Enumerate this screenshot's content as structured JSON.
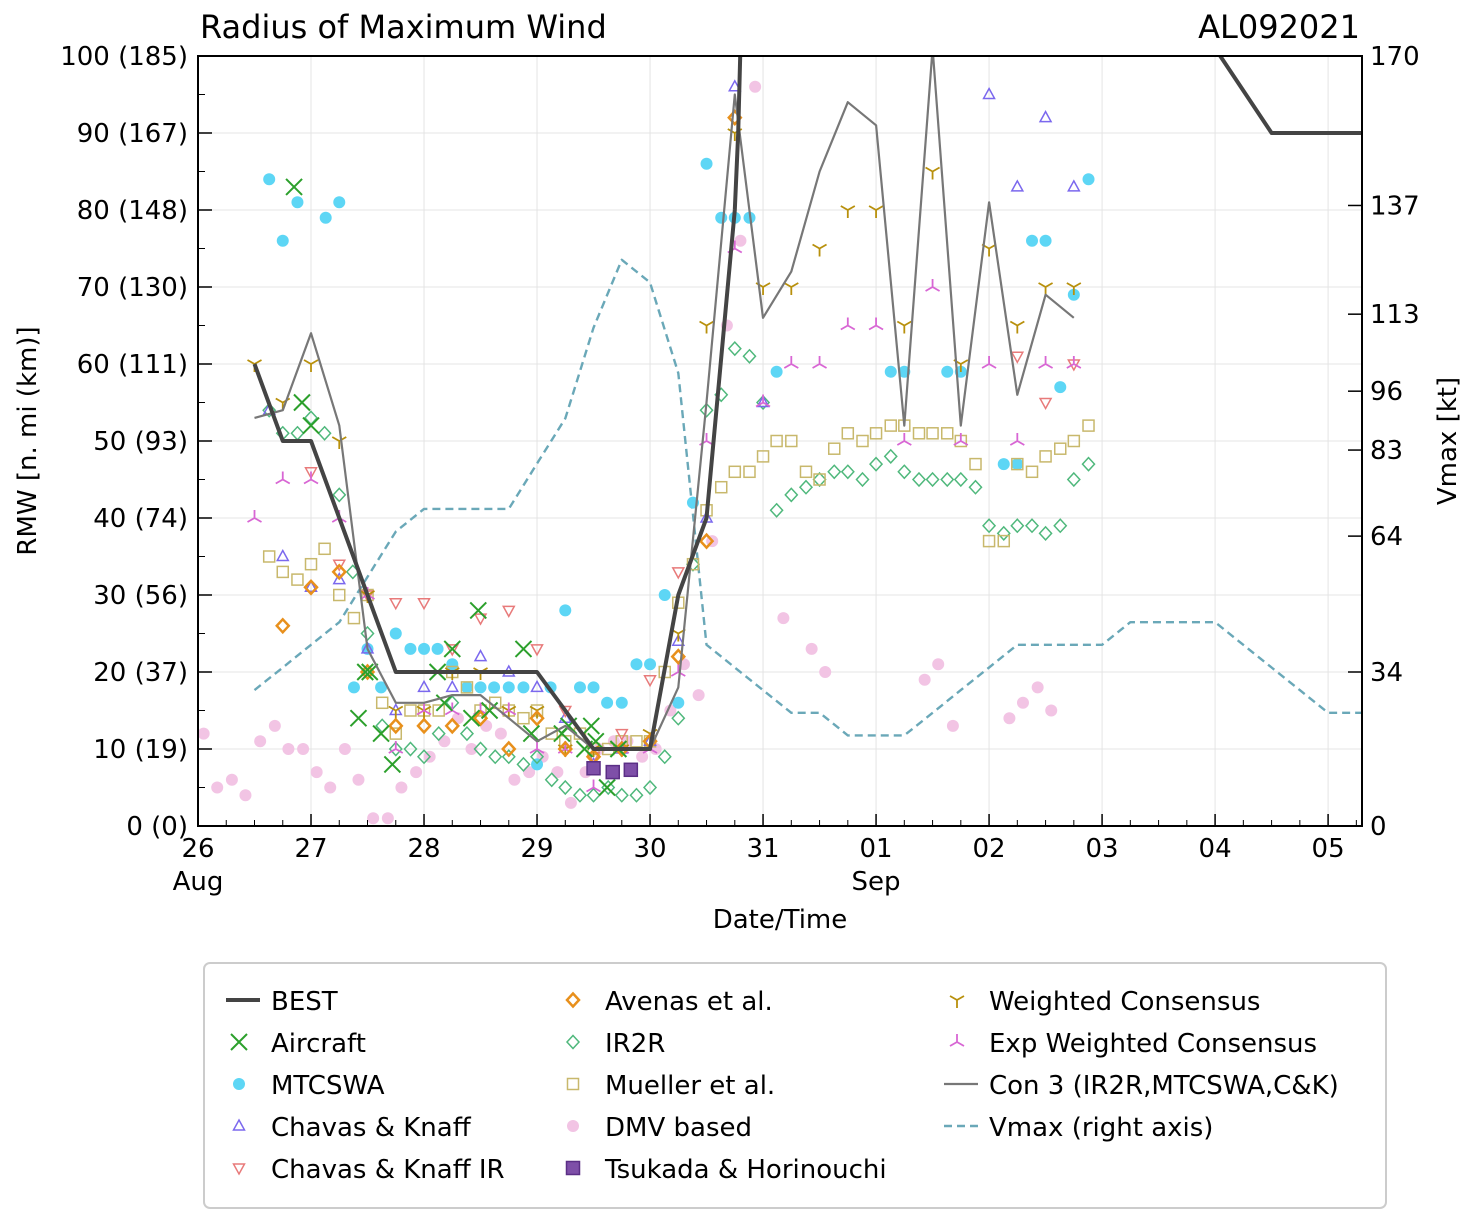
{
  "chart_data": {
    "type": "scatter",
    "title_left": "Radius of Maximum Wind",
    "title_right": "AL092021",
    "xlabel": "Date/Time",
    "ylabel": "RMW [n. mi (km)]",
    "ylabel_right": "Vmax [kt]",
    "xlim": [
      0,
      10.3
    ],
    "ylim": [
      0,
      100
    ],
    "ylim_right": [
      0,
      170
    ],
    "x_units": "days since 26 Aug 2021 00Z",
    "x_ticks": [
      {
        "v": 0,
        "label": "26",
        "sub": "Aug"
      },
      {
        "v": 1,
        "label": "27",
        "sub": ""
      },
      {
        "v": 2,
        "label": "28",
        "sub": ""
      },
      {
        "v": 3,
        "label": "29",
        "sub": ""
      },
      {
        "v": 4,
        "label": "30",
        "sub": ""
      },
      {
        "v": 5,
        "label": "31",
        "sub": ""
      },
      {
        "v": 6,
        "label": "01",
        "sub": "Sep"
      },
      {
        "v": 7,
        "label": "02",
        "sub": ""
      },
      {
        "v": 8,
        "label": "03",
        "sub": ""
      },
      {
        "v": 9,
        "label": "04",
        "sub": ""
      },
      {
        "v": 10,
        "label": "05",
        "sub": ""
      }
    ],
    "y_ticks_left": [
      {
        "v": 0,
        "label": "0 (0)"
      },
      {
        "v": 10,
        "label": "10 (19)"
      },
      {
        "v": 20,
        "label": "20 (37)"
      },
      {
        "v": 30,
        "label": "30 (56)"
      },
      {
        "v": 40,
        "label": "40 (74)"
      },
      {
        "v": 50,
        "label": "50 (93)"
      },
      {
        "v": 60,
        "label": "60 (111)"
      },
      {
        "v": 70,
        "label": "70 (130)"
      },
      {
        "v": 80,
        "label": "80 (148)"
      },
      {
        "v": 90,
        "label": "90 (167)"
      },
      {
        "v": 100,
        "label": "100 (185)"
      }
    ],
    "y_ticks_right": [
      {
        "v": 0,
        "label": "0"
      },
      {
        "v": 34,
        "label": "34"
      },
      {
        "v": 64,
        "label": "64"
      },
      {
        "v": 83,
        "label": "83"
      },
      {
        "v": 96,
        "label": "96"
      },
      {
        "v": 113,
        "label": "113"
      },
      {
        "v": 137,
        "label": "137"
      },
      {
        "v": 170,
        "label": "170"
      }
    ],
    "series": [
      {
        "name": "BEST",
        "marker": "line",
        "color": "#444444",
        "x": [
          0.5,
          0.75,
          1.0,
          1.25,
          1.5,
          1.75,
          2.0,
          2.25,
          2.5,
          2.75,
          3.0,
          3.25,
          3.5,
          3.75,
          4.0,
          4.25,
          4.5,
          4.75,
          4.78,
          4.8,
          6.0,
          7.0,
          8.0,
          8.5,
          8.75,
          9.0,
          9.5,
          10.0,
          10.75
        ],
        "y": [
          60,
          50,
          50,
          40,
          30,
          20,
          20,
          20,
          20,
          20,
          20,
          15,
          10,
          10,
          10,
          30,
          40,
          80,
          90,
          101,
          101,
          101,
          101,
          101,
          101,
          101,
          90,
          90,
          90
        ]
      },
      {
        "name": "Aircraft",
        "marker": "x",
        "color": "#2ca02c",
        "x": [
          0.85,
          0.92,
          1.0,
          1.42,
          1.48,
          1.52,
          1.62,
          1.72,
          2.12,
          2.18,
          2.25,
          2.42,
          2.48,
          2.58,
          2.88,
          2.95,
          3.22,
          3.28,
          3.42,
          3.48,
          3.52,
          3.62,
          3.72
        ],
        "y": [
          83,
          55,
          52,
          14,
          20,
          20,
          12,
          8,
          20,
          16,
          23,
          14,
          28,
          15,
          23,
          12,
          12,
          13,
          10,
          13,
          11,
          5,
          10
        ]
      },
      {
        "name": "MTCSWA",
        "marker": "circle",
        "color": "#5dd6f5",
        "x": [
          0.63,
          0.75,
          0.88,
          1.13,
          1.25,
          1.38,
          1.5,
          1.62,
          1.75,
          1.88,
          2.0,
          2.12,
          2.25,
          2.38,
          2.5,
          2.62,
          2.75,
          2.88,
          3.0,
          3.12,
          3.25,
          3.38,
          3.5,
          3.62,
          3.75,
          3.88,
          4.0,
          4.13,
          4.25,
          4.38,
          4.5,
          4.63,
          4.75,
          4.88,
          5.12,
          6.13,
          6.25,
          6.63,
          6.75,
          7.13,
          7.25,
          7.38,
          7.5,
          7.63,
          7.75,
          7.88
        ],
        "y": [
          84,
          76,
          81,
          79,
          81,
          18,
          23,
          18,
          25,
          23,
          23,
          23,
          21,
          18,
          18,
          18,
          18,
          18,
          8,
          18,
          28,
          18,
          18,
          16,
          16,
          21,
          21,
          30,
          16,
          42,
          86,
          79,
          79,
          79,
          59,
          59,
          59,
          59,
          59,
          47,
          47,
          76,
          76,
          57,
          69,
          84
        ]
      },
      {
        "name": "Chavas & Knaff",
        "marker": "tri_up",
        "color": "#7b68ee",
        "x": [
          0.63,
          0.75,
          1.0,
          1.25,
          1.5,
          1.75,
          2.0,
          2.25,
          2.5,
          2.75,
          3.0,
          3.25,
          3.5,
          3.75,
          4.0,
          4.25,
          4.5,
          4.75,
          5.0,
          7.0,
          7.25,
          7.5,
          7.75
        ],
        "y": [
          54,
          35,
          31,
          32,
          23,
          15,
          18,
          18,
          22,
          20,
          18,
          14,
          8,
          10,
          11,
          24,
          40,
          96,
          55,
          95,
          83,
          92,
          83
        ]
      },
      {
        "name": "Chavas & Knaff IR",
        "marker": "tri_down",
        "color": "#e87a7a",
        "x": [
          1.0,
          1.25,
          1.5,
          1.75,
          2.0,
          2.25,
          2.5,
          2.75,
          3.0,
          3.25,
          3.5,
          3.75,
          4.0,
          4.25,
          7.25,
          7.5,
          7.75
        ],
        "y": [
          46,
          34,
          30,
          29,
          29,
          23,
          27,
          28,
          23,
          15,
          9,
          12,
          19,
          33,
          61,
          55,
          60
        ]
      },
      {
        "name": "Avenas et al.",
        "marker": "diamond",
        "color": "#e8901c",
        "x": [
          0.75,
          1.0,
          1.25,
          1.5,
          1.75,
          2.0,
          2.25,
          2.5,
          2.75,
          3.0,
          3.25,
          3.5,
          3.75,
          4.0,
          4.25,
          4.5,
          4.75
        ],
        "y": [
          26,
          31,
          33,
          20,
          13,
          13,
          13,
          14,
          10,
          14,
          10,
          9,
          10,
          11,
          22,
          37,
          92
        ]
      },
      {
        "name": "IR2R",
        "marker": "diamond_open",
        "color": "#4fb87c",
        "x": [
          0.63,
          0.75,
          0.88,
          1.0,
          1.12,
          1.25,
          1.37,
          1.5,
          1.63,
          1.75,
          1.88,
          2.0,
          2.13,
          2.25,
          2.38,
          2.5,
          2.63,
          2.75,
          2.88,
          3.0,
          3.13,
          3.25,
          3.38,
          3.5,
          3.63,
          3.75,
          3.88,
          4.0,
          4.13,
          4.25,
          4.38,
          4.5,
          4.63,
          4.75,
          4.88,
          5.0,
          5.12,
          5.25,
          5.38,
          5.5,
          5.63,
          5.75,
          5.88,
          6.0,
          6.13,
          6.25,
          6.38,
          6.5,
          6.63,
          6.75,
          6.88,
          7.0,
          7.13,
          7.25,
          7.38,
          7.5,
          7.63,
          7.75,
          7.88
        ],
        "y": [
          54,
          51,
          51,
          53,
          51,
          43,
          33,
          25,
          13,
          10,
          10,
          9,
          12,
          16,
          12,
          10,
          9,
          9,
          8,
          9,
          6,
          5,
          4,
          4,
          5,
          4,
          4,
          5,
          9,
          14,
          34,
          54,
          56,
          62,
          61,
          55,
          41,
          43,
          44,
          45,
          46,
          46,
          45,
          47,
          48,
          46,
          45,
          45,
          45,
          45,
          44,
          39,
          38,
          39,
          39,
          38,
          39,
          45,
          47
        ]
      },
      {
        "name": "Mueller et al.",
        "marker": "square_open",
        "color": "#c8b86c",
        "x": [
          0.63,
          0.75,
          0.88,
          1.0,
          1.12,
          1.25,
          1.38,
          1.5,
          1.63,
          1.75,
          1.88,
          2.0,
          2.13,
          2.25,
          2.38,
          2.5,
          2.63,
          2.75,
          2.88,
          3.0,
          3.13,
          3.25,
          3.38,
          3.5,
          3.63,
          3.75,
          3.88,
          4.0,
          4.13,
          4.25,
          4.38,
          4.5,
          4.63,
          4.75,
          4.88,
          5.0,
          5.12,
          5.25,
          5.38,
          5.5,
          5.63,
          5.75,
          5.88,
          6.0,
          6.13,
          6.25,
          6.38,
          6.5,
          6.63,
          6.75,
          6.88,
          7.0,
          7.13,
          7.25,
          7.38,
          7.5,
          7.63,
          7.75,
          7.88
        ],
        "y": [
          35,
          33,
          32,
          34,
          36,
          30,
          27,
          30,
          16,
          12,
          15,
          15,
          15,
          20,
          18,
          15,
          16,
          15,
          14,
          15,
          12,
          11,
          12,
          10,
          10,
          11,
          11,
          11,
          20,
          29,
          34,
          41,
          44,
          46,
          46,
          48,
          50,
          50,
          46,
          45,
          49,
          51,
          50,
          51,
          52,
          52,
          51,
          51,
          51,
          50,
          47,
          37,
          37,
          47,
          46,
          48,
          49,
          50,
          52
        ]
      },
      {
        "name": "DMV based",
        "marker": "circle",
        "color": "#f2c4e4",
        "x": [
          0.05,
          0.17,
          0.3,
          0.42,
          0.55,
          0.68,
          0.8,
          0.93,
          1.05,
          1.17,
          1.3,
          1.42,
          1.55,
          1.68,
          1.8,
          1.93,
          2.05,
          2.18,
          2.3,
          2.42,
          2.55,
          2.68,
          2.8,
          2.93,
          3.05,
          3.18,
          3.3,
          3.43,
          3.55,
          3.68,
          3.8,
          3.93,
          4.05,
          4.18,
          4.3,
          4.43,
          4.55,
          4.68,
          4.8,
          4.93,
          5.18,
          5.43,
          5.55,
          6.43,
          6.55,
          6.68,
          7.18,
          7.3,
          7.43,
          7.55
        ],
        "y": [
          12,
          5,
          6,
          4,
          11,
          13,
          10,
          10,
          7,
          5,
          10,
          6,
          1,
          1,
          5,
          7,
          9,
          11,
          14,
          10,
          13,
          12,
          6,
          7,
          9,
          7,
          3,
          7,
          10,
          11,
          11,
          9,
          10,
          15,
          21,
          17,
          37,
          65,
          76,
          96,
          27,
          23,
          20,
          19,
          21,
          13,
          14,
          16,
          18,
          15
        ]
      },
      {
        "name": "Tsukada & Horinouchi",
        "marker": "square_filled",
        "color": "#7e4fa8",
        "x": [
          3.5,
          3.67,
          3.83
        ],
        "y": [
          7.5,
          7.0,
          7.3
        ]
      },
      {
        "name": "Weighted Consensus",
        "marker": "tri_y",
        "color": "#b8900c",
        "x": [
          0.5,
          0.75,
          1.0,
          1.25,
          1.5,
          1.75,
          2.0,
          2.25,
          2.5,
          2.75,
          3.0,
          3.25,
          3.5,
          3.75,
          4.0,
          4.25,
          4.5,
          4.75,
          5.0,
          5.25,
          5.5,
          5.75,
          6.0,
          6.25,
          6.5,
          6.75,
          7.0,
          7.25,
          7.5,
          7.75
        ],
        "y": [
          60,
          55,
          60,
          50,
          30,
          15,
          15,
          20,
          20,
          15,
          15,
          10,
          10,
          10,
          12,
          25,
          65,
          90,
          70,
          70,
          75,
          80,
          80,
          65,
          85,
          60,
          75,
          65,
          70,
          70
        ]
      },
      {
        "name": "Exp Weighted Consensus",
        "marker": "tri_left",
        "color": "#d866d4",
        "x": [
          0.5,
          0.75,
          1.0,
          1.25,
          1.5,
          1.75,
          2.0,
          2.25,
          2.5,
          2.75,
          3.0,
          3.25,
          3.5,
          3.75,
          4.0,
          4.25,
          4.5,
          4.75,
          5.0,
          5.25,
          5.5,
          5.75,
          6.0,
          6.25,
          6.5,
          6.75,
          7.0,
          7.25,
          7.5,
          7.75
        ],
        "y": [
          40,
          45,
          45,
          40,
          30,
          10,
          15,
          15,
          15,
          15,
          10,
          10,
          5,
          10,
          10,
          20,
          50,
          75,
          55,
          60,
          60,
          65,
          65,
          50,
          70,
          50,
          60,
          50,
          60,
          60
        ]
      },
      {
        "name": "Con 3 (IR2R,MTCSWA,C&K)",
        "marker": "line_thin",
        "color": "#777777",
        "x": [
          0.5,
          0.75,
          1.0,
          1.25,
          1.5,
          1.75,
          2.0,
          2.25,
          2.5,
          2.75,
          3.0,
          3.25,
          3.5,
          3.75,
          4.0,
          4.25,
          4.5,
          4.75,
          5.0,
          5.25,
          5.5,
          5.75,
          6.0,
          6.25,
          6.5,
          6.75,
          7.0,
          7.25,
          7.5,
          7.75
        ],
        "y": [
          53,
          54,
          64,
          52,
          23,
          16,
          16,
          17,
          17,
          14,
          11,
          13,
          10,
          10,
          10,
          18,
          55,
          95,
          66,
          72,
          85,
          94,
          91,
          52,
          101,
          52,
          81,
          56,
          69,
          66
        ]
      },
      {
        "name": "Vmax (right axis)",
        "marker": "dashed",
        "color": "#6aa8b8",
        "x": [
          0.5,
          0.75,
          1.0,
          1.25,
          1.5,
          1.75,
          2.0,
          2.25,
          2.5,
          2.75,
          3.0,
          3.25,
          3.5,
          3.75,
          4.0,
          4.25,
          4.5,
          4.75,
          5.0,
          5.25,
          5.5,
          5.75,
          6.0,
          6.25,
          6.5,
          6.75,
          7.0,
          7.25,
          7.5,
          7.75,
          8.0,
          8.25,
          8.5,
          8.75,
          9.0,
          9.25,
          9.5,
          9.75,
          10.0,
          10.75
        ],
        "y": [
          30,
          35,
          40,
          45,
          55,
          65,
          70,
          70,
          70,
          70,
          80,
          90,
          110,
          125,
          120,
          100,
          40,
          35,
          30,
          25,
          25,
          20,
          20,
          20,
          25,
          30,
          35,
          40,
          40,
          40,
          40,
          45,
          45,
          45,
          45,
          40,
          35,
          30,
          25,
          25
        ]
      }
    ]
  },
  "legend": {
    "columns": [
      [
        "BEST",
        "Aircraft",
        "MTCSWA",
        "Chavas & Knaff",
        "Chavas & Knaff IR"
      ],
      [
        "Avenas et al.",
        "IR2R",
        "Mueller et al.",
        "DMV based",
        "Tsukada & Horinouchi"
      ],
      [
        "Weighted Consensus",
        "Exp Weighted Consensus",
        "Con 3 (IR2R,MTCSWA,C&K)",
        "Vmax (right axis)"
      ]
    ]
  }
}
